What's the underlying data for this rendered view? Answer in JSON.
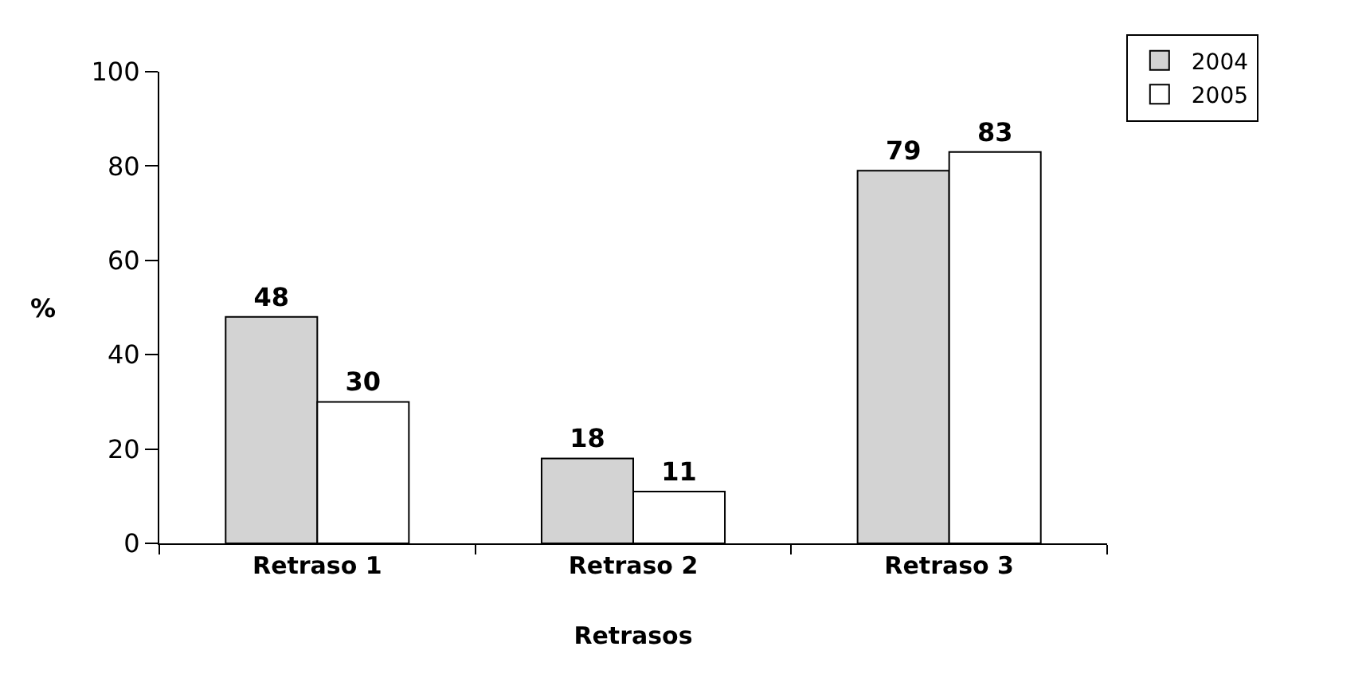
{
  "chart_data": {
    "type": "bar",
    "xlabel": "Retrasos",
    "ylabel": "%",
    "categories": [
      "Retraso 1",
      "Retraso 2",
      "Retraso 3"
    ],
    "series": [
      {
        "name": "2004",
        "color": "#d3d3d3",
        "values": [
          48,
          18,
          79
        ]
      },
      {
        "name": "2005",
        "color": "#ffffff",
        "values": [
          30,
          11,
          83
        ]
      }
    ],
    "ylim": [
      0,
      100
    ],
    "yticks": [
      0,
      20,
      40,
      60,
      80,
      100
    ],
    "grid": false,
    "legend": "top right",
    "data_labels": true
  }
}
